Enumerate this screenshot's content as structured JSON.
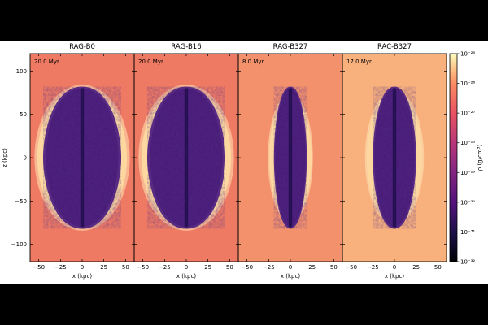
{
  "chart_data": {
    "type": "heatmap",
    "colormap": "magma",
    "xlabel": "x (kpc)",
    "ylabel": "z (kpc)",
    "xlim": [
      -60,
      60
    ],
    "ylim": [
      -120,
      120
    ],
    "x_ticks": [
      -50,
      -25,
      0,
      25,
      50
    ],
    "x_tick_labels": [
      "−50",
      "−25",
      "0",
      "25",
      "50"
    ],
    "y_ticks": [
      -100,
      -50,
      0,
      50,
      100
    ],
    "y_tick_labels": [
      "−100",
      "−50",
      "0",
      "50",
      "100"
    ],
    "panels": [
      {
        "title": "RAG-B0",
        "time": "20.0 Myr",
        "lobe_half_width": 45,
        "lobe_half_height": 82,
        "shock_half_width": 55,
        "shock_half_height": 98,
        "bg": "#ef7a63"
      },
      {
        "title": "RAG-B16",
        "time": "20.0 Myr",
        "lobe_half_width": 45,
        "lobe_half_height": 82,
        "shock_half_width": 55,
        "shock_half_height": 98,
        "bg": "#ef7a63"
      },
      {
        "title": "RAG-B327",
        "time": "8.0 Myr",
        "lobe_half_width": 19,
        "lobe_half_height": 82,
        "shock_half_width": 26,
        "shock_half_height": 86,
        "bg": "#f4916d"
      },
      {
        "title": "RAC-B327",
        "time": "17.0 Myr",
        "lobe_half_width": 25,
        "lobe_half_height": 82,
        "shock_half_width": 34,
        "shock_half_height": 90,
        "bg": "#f8b07d"
      }
    ],
    "colorbar": {
      "label": "ρ (g/cm³)",
      "range_log10": [
        -32,
        -25
      ],
      "tick_labels": [
        "10⁻²⁵",
        "10⁻²⁶",
        "10⁻²⁷",
        "10⁻²⁸",
        "10⁻²⁹",
        "10⁻³⁰",
        "10⁻³¹",
        "10⁻³²"
      ]
    },
    "colors": {
      "lobe": "#4a1c78",
      "lobe_dark": "#1e0e4a",
      "shell": "#fcd8a0",
      "shell_edge": "#ffe7b8"
    }
  }
}
